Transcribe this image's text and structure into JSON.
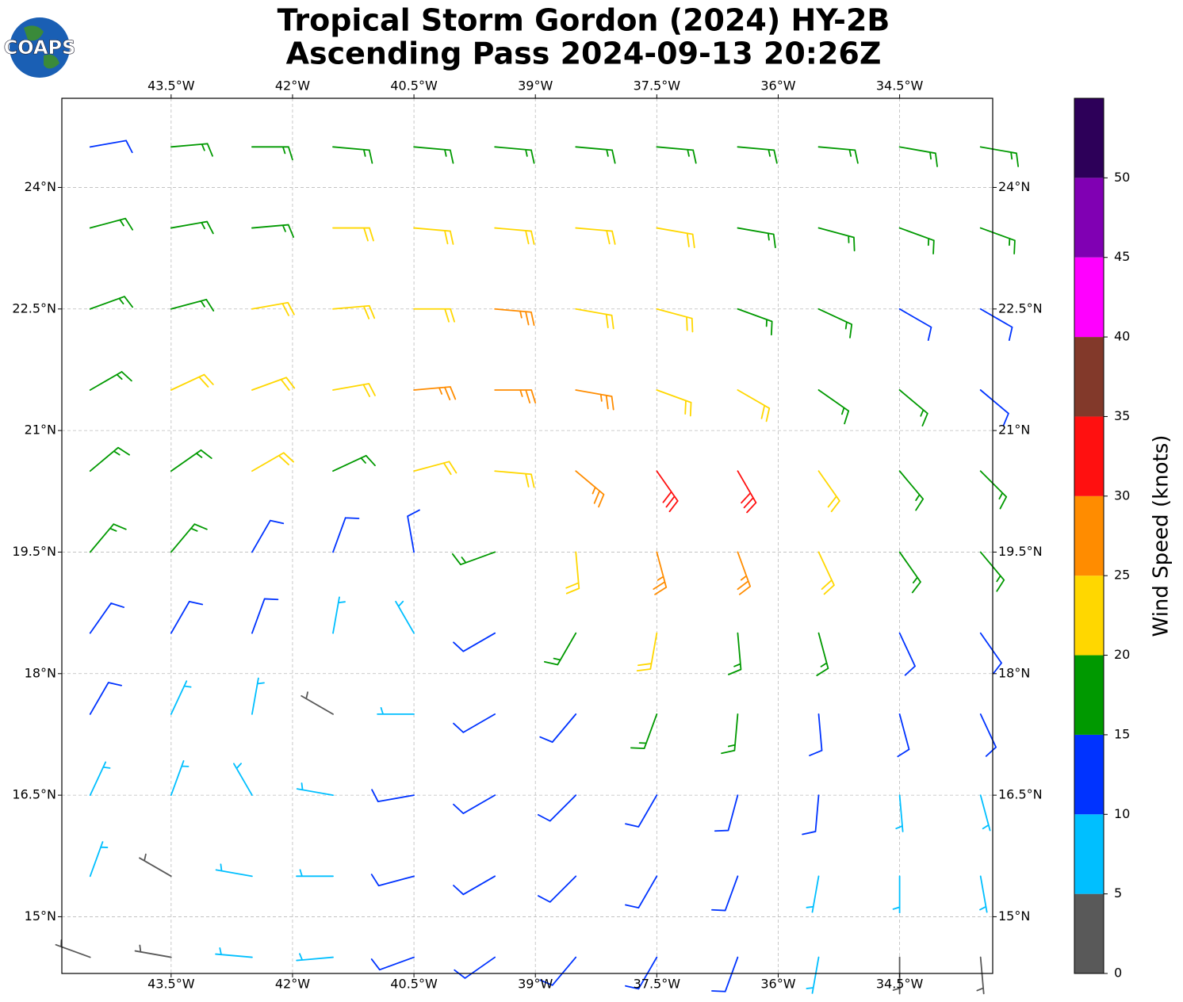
{
  "logo": "COAPS",
  "chart_data": {
    "type": "barbs",
    "title": "Tropical Storm Gordon (2024) HY-2B",
    "subtitle": "Ascending Pass 2024-09-13 20:26Z",
    "xlim": [
      -44.85,
      -33.35
    ],
    "ylim": [
      14.3,
      25.1
    ],
    "xticks": [
      {
        "value": -43.5,
        "label": "43.5°W"
      },
      {
        "value": -42,
        "label": "42°W"
      },
      {
        "value": -40.5,
        "label": "40.5°W"
      },
      {
        "value": -39,
        "label": "39°W"
      },
      {
        "value": -37.5,
        "label": "37.5°W"
      },
      {
        "value": -36,
        "label": "36°W"
      },
      {
        "value": -34.5,
        "label": "34.5°W"
      }
    ],
    "yticks": [
      {
        "value": 15,
        "label": "15°N"
      },
      {
        "value": 16.5,
        "label": "16.5°N"
      },
      {
        "value": 18,
        "label": "18°N"
      },
      {
        "value": 19.5,
        "label": "19.5°N"
      },
      {
        "value": 21,
        "label": "21°N"
      },
      {
        "value": 22.5,
        "label": "22.5°N"
      },
      {
        "value": 24,
        "label": "24°N"
      }
    ],
    "grid": true,
    "barbs": {
      "lon": [
        -44.5,
        -43.5,
        -42.5,
        -41.5,
        -40.5,
        -39.5,
        -38.5,
        -37.5,
        -36.5,
        -35.5,
        -34.5,
        -33.5
      ],
      "lat": [
        24.5,
        23.5,
        22.5,
        21.5,
        20.5,
        19.5,
        18.5,
        17.5,
        16.5,
        15.5,
        14.5
      ],
      "speed": [
        [
          12,
          17,
          17,
          17,
          17,
          17,
          17,
          17,
          17,
          17,
          17,
          17
        ],
        [
          17,
          17,
          17,
          22,
          22,
          22,
          22,
          22,
          17,
          17,
          17,
          17
        ],
        [
          17,
          17,
          22,
          22,
          22,
          27,
          22,
          22,
          17,
          17,
          12,
          12
        ],
        [
          17,
          22,
          22,
          22,
          27,
          27,
          27,
          22,
          22,
          17,
          17,
          12
        ],
        [
          17,
          17,
          22,
          17,
          22,
          22,
          27,
          32,
          32,
          22,
          17,
          17
        ],
        [
          17,
          17,
          12,
          12,
          12,
          17,
          22,
          27,
          27,
          22,
          17,
          17
        ],
        [
          12,
          12,
          12,
          7,
          7,
          12,
          17,
          22,
          17,
          17,
          12,
          12
        ],
        [
          12,
          7,
          7,
          3,
          7,
          12,
          12,
          17,
          17,
          12,
          12,
          12
        ],
        [
          7,
          7,
          7,
          7,
          12,
          12,
          12,
          12,
          12,
          12,
          7,
          7
        ],
        [
          7,
          3,
          7,
          7,
          12,
          12,
          12,
          12,
          12,
          7,
          7,
          7
        ],
        [
          3,
          3,
          7,
          7,
          12,
          12,
          12,
          12,
          12,
          7,
          3,
          3
        ]
      ],
      "direction": [
        [
          80,
          85,
          90,
          95,
          95,
          95,
          95,
          95,
          95,
          95,
          100,
          100
        ],
        [
          75,
          80,
          85,
          90,
          95,
          95,
          95,
          100,
          100,
          105,
          110,
          110
        ],
        [
          70,
          75,
          80,
          85,
          90,
          95,
          100,
          105,
          110,
          115,
          120,
          120
        ],
        [
          60,
          65,
          70,
          80,
          85,
          90,
          100,
          110,
          120,
          125,
          130,
          130
        ],
        [
          50,
          55,
          60,
          65,
          75,
          95,
          130,
          145,
          150,
          145,
          140,
          135
        ],
        [
          40,
          40,
          30,
          20,
          350,
          250,
          175,
          165,
          160,
          155,
          145,
          140
        ],
        [
          35,
          30,
          20,
          10,
          330,
          240,
          210,
          190,
          175,
          165,
          155,
          145
        ],
        [
          30,
          25,
          10,
          300,
          270,
          240,
          220,
          200,
          185,
          175,
          165,
          155
        ],
        [
          25,
          20,
          330,
          280,
          260,
          240,
          225,
          210,
          195,
          185,
          175,
          165
        ],
        [
          20,
          300,
          280,
          270,
          255,
          240,
          225,
          210,
          200,
          190,
          180,
          170
        ],
        [
          290,
          280,
          275,
          265,
          250,
          235,
          220,
          210,
          200,
          190,
          180,
          175
        ]
      ]
    },
    "colorbar": {
      "label": "Wind Speed (knots)",
      "lim": [
        0,
        55
      ],
      "ticks": [
        0,
        5,
        10,
        15,
        20,
        25,
        30,
        35,
        40,
        45,
        50
      ],
      "colors": [
        "#595959",
        "#00bfff",
        "#0033ff",
        "#009900",
        "#ffd700",
        "#ff8c00",
        "#ff1010",
        "#82392a",
        "#ff00ff",
        "#8000b3",
        "#2d0059"
      ]
    }
  }
}
